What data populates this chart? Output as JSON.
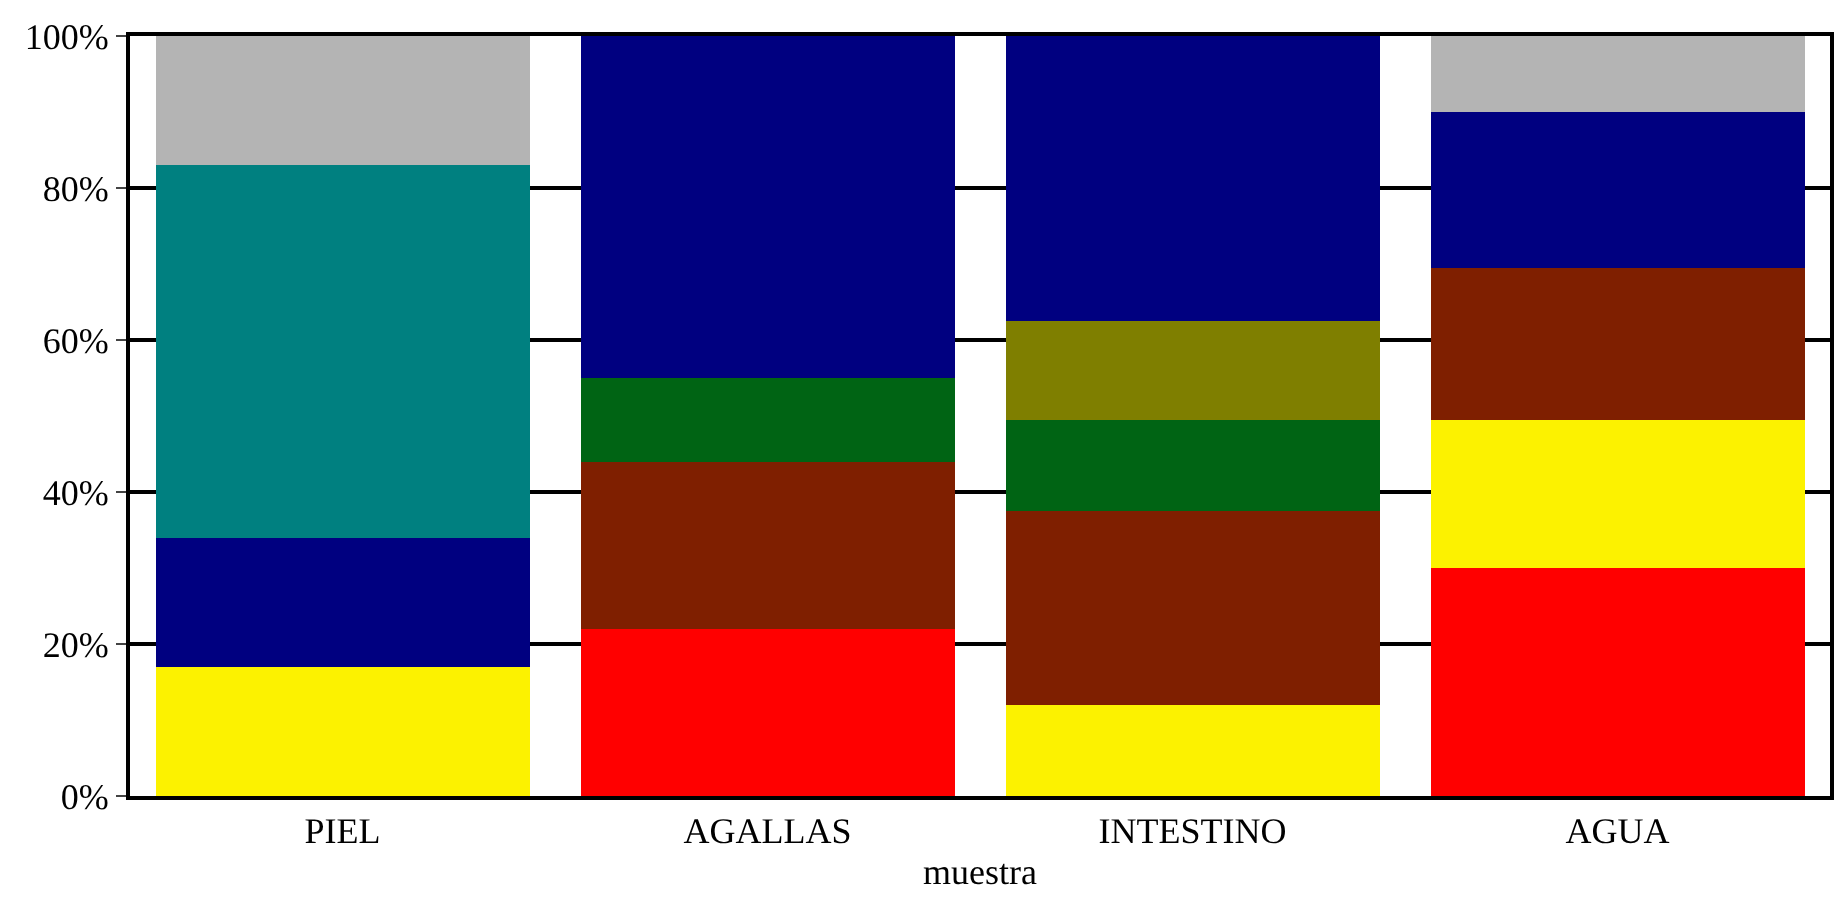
{
  "chart_data": {
    "type": "bar",
    "stacked": true,
    "xlabel": "muestra",
    "categories": [
      "PIEL",
      "AGALLAS",
      "INTESTINO",
      "AGUA"
    ],
    "series": [
      {
        "color": "#ff0000",
        "values": [
          null,
          22,
          null,
          30
        ]
      },
      {
        "color": "#fcf200",
        "values": [
          17,
          null,
          12,
          19.5
        ]
      },
      {
        "color": "#7f1f00",
        "values": [
          null,
          22,
          25.5,
          20
        ]
      },
      {
        "color": "#006414",
        "values": [
          null,
          11,
          12,
          null
        ]
      },
      {
        "color": "#7f7f00",
        "values": [
          null,
          null,
          13,
          null
        ]
      },
      {
        "color": "#000080",
        "values": [
          17,
          45,
          37.5,
          20.5
        ]
      },
      {
        "color": "#008080",
        "values": [
          49,
          null,
          null,
          null
        ]
      },
      {
        "color": "#b4b4b4",
        "values": [
          17,
          null,
          null,
          10
        ]
      }
    ],
    "ylim": [
      0,
      100
    ],
    "yticks": [
      {
        "value": 0,
        "label": "0%"
      },
      {
        "value": 20,
        "label": "20%"
      },
      {
        "value": 40,
        "label": "40%"
      },
      {
        "value": 60,
        "label": "60%"
      },
      {
        "value": 80,
        "label": "80%"
      },
      {
        "value": 100,
        "label": "100%"
      }
    ],
    "grid": "y"
  }
}
